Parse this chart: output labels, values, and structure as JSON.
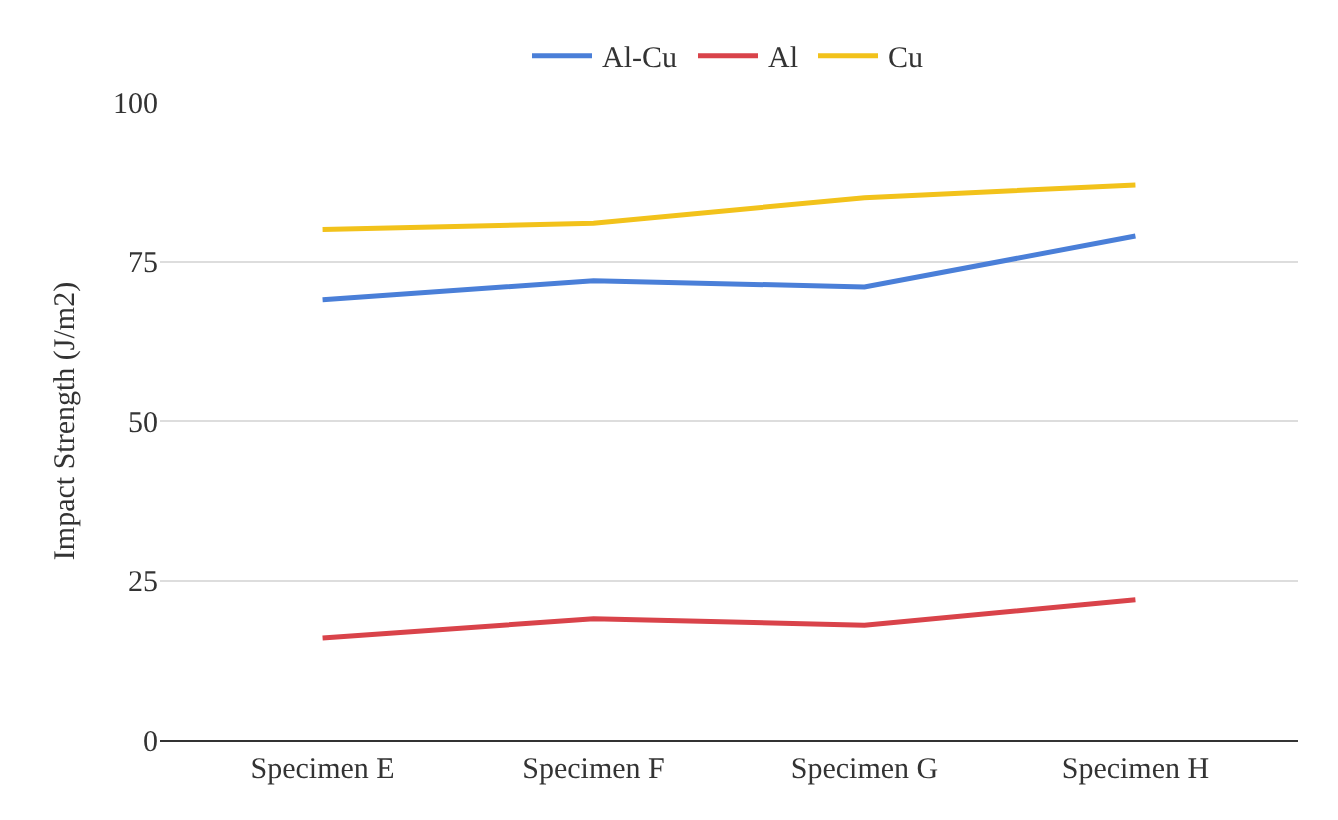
{
  "chart_data": {
    "type": "line",
    "ylabel": "Impact Strength (J/m2)",
    "categories": [
      "Specimen E",
      "Specimen F",
      "Specimen G",
      "Specimen H"
    ],
    "series": [
      {
        "name": "Al-Cu",
        "color": "#4a7fd8",
        "values": [
          69,
          72,
          71,
          79
        ]
      },
      {
        "name": "Al",
        "color": "#d9434a",
        "values": [
          16,
          19,
          18,
          22
        ]
      },
      {
        "name": "Cu",
        "color": "#f2c21b",
        "values": [
          80,
          81,
          85,
          87
        ]
      }
    ],
    "ylim": [
      0,
      100
    ],
    "yticks": [
      0,
      25,
      50,
      75,
      100
    ],
    "grid": "y",
    "legend": "top",
    "marker": "none",
    "line_style": "solid"
  }
}
